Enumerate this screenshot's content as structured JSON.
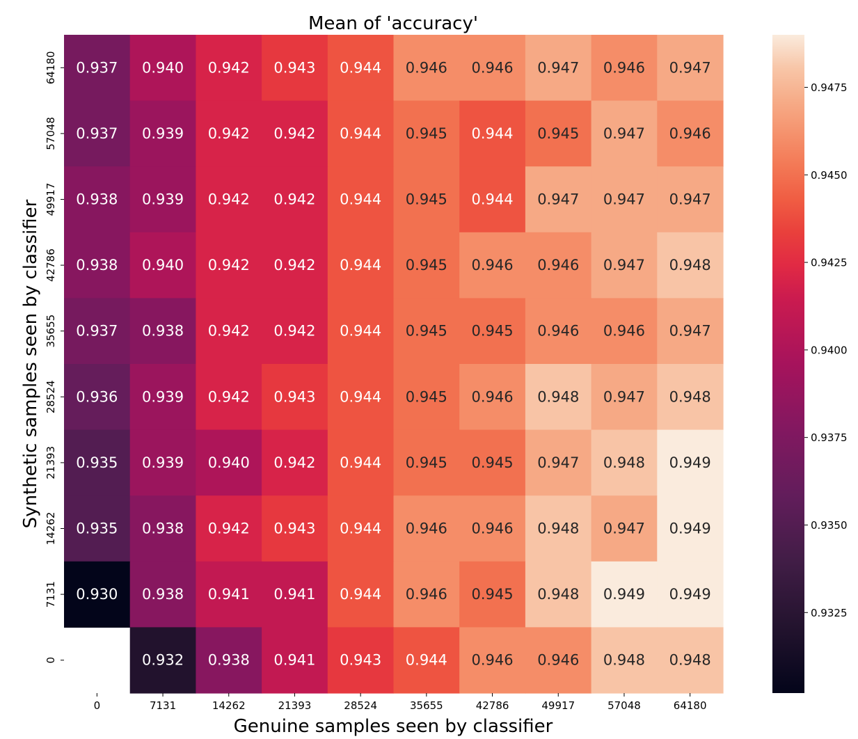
{
  "chart_data": {
    "type": "heatmap",
    "title": "Mean of 'accuracy'",
    "xlabel": "Genuine samples seen by classifier",
    "ylabel": "Synthetic samples seen by classifier",
    "x_categories": [
      "0",
      "7131",
      "14262",
      "21393",
      "28524",
      "35655",
      "42786",
      "49917",
      "57048",
      "64180"
    ],
    "y_categories": [
      "64180",
      "57048",
      "49917",
      "42786",
      "35655",
      "28524",
      "21393",
      "14262",
      "7131",
      "0"
    ],
    "values": [
      [
        0.937,
        0.94,
        0.942,
        0.943,
        0.944,
        0.946,
        0.946,
        0.947,
        0.946,
        0.947
      ],
      [
        0.937,
        0.939,
        0.942,
        0.942,
        0.944,
        0.945,
        0.944,
        0.945,
        0.947,
        0.946
      ],
      [
        0.938,
        0.939,
        0.942,
        0.942,
        0.944,
        0.945,
        0.944,
        0.947,
        0.947,
        0.947
      ],
      [
        0.938,
        0.94,
        0.942,
        0.942,
        0.944,
        0.945,
        0.946,
        0.946,
        0.947,
        0.948
      ],
      [
        0.937,
        0.938,
        0.942,
        0.942,
        0.944,
        0.945,
        0.945,
        0.946,
        0.946,
        0.947
      ],
      [
        0.936,
        0.939,
        0.942,
        0.943,
        0.944,
        0.945,
        0.946,
        0.948,
        0.947,
        0.948
      ],
      [
        0.935,
        0.939,
        0.94,
        0.942,
        0.944,
        0.945,
        0.945,
        0.947,
        0.948,
        0.949
      ],
      [
        0.935,
        0.938,
        0.942,
        0.943,
        0.944,
        0.946,
        0.946,
        0.948,
        0.947,
        0.949
      ],
      [
        0.93,
        0.938,
        0.941,
        0.941,
        0.944,
        0.946,
        0.945,
        0.948,
        0.949,
        0.949
      ],
      [
        null,
        0.932,
        0.938,
        0.941,
        0.943,
        0.944,
        0.946,
        0.946,
        0.948,
        0.948
      ]
    ],
    "colorbar": {
      "vmin": 0.9302,
      "vmax": 0.949,
      "ticks": [
        0.9325,
        0.935,
        0.9375,
        0.94,
        0.9425,
        0.945,
        0.9475
      ],
      "tick_labels": [
        "0.9325",
        "0.9350",
        "0.9375",
        "0.9400",
        "0.9425",
        "0.9450",
        "0.9475"
      ]
    },
    "colormap": "rocket"
  }
}
